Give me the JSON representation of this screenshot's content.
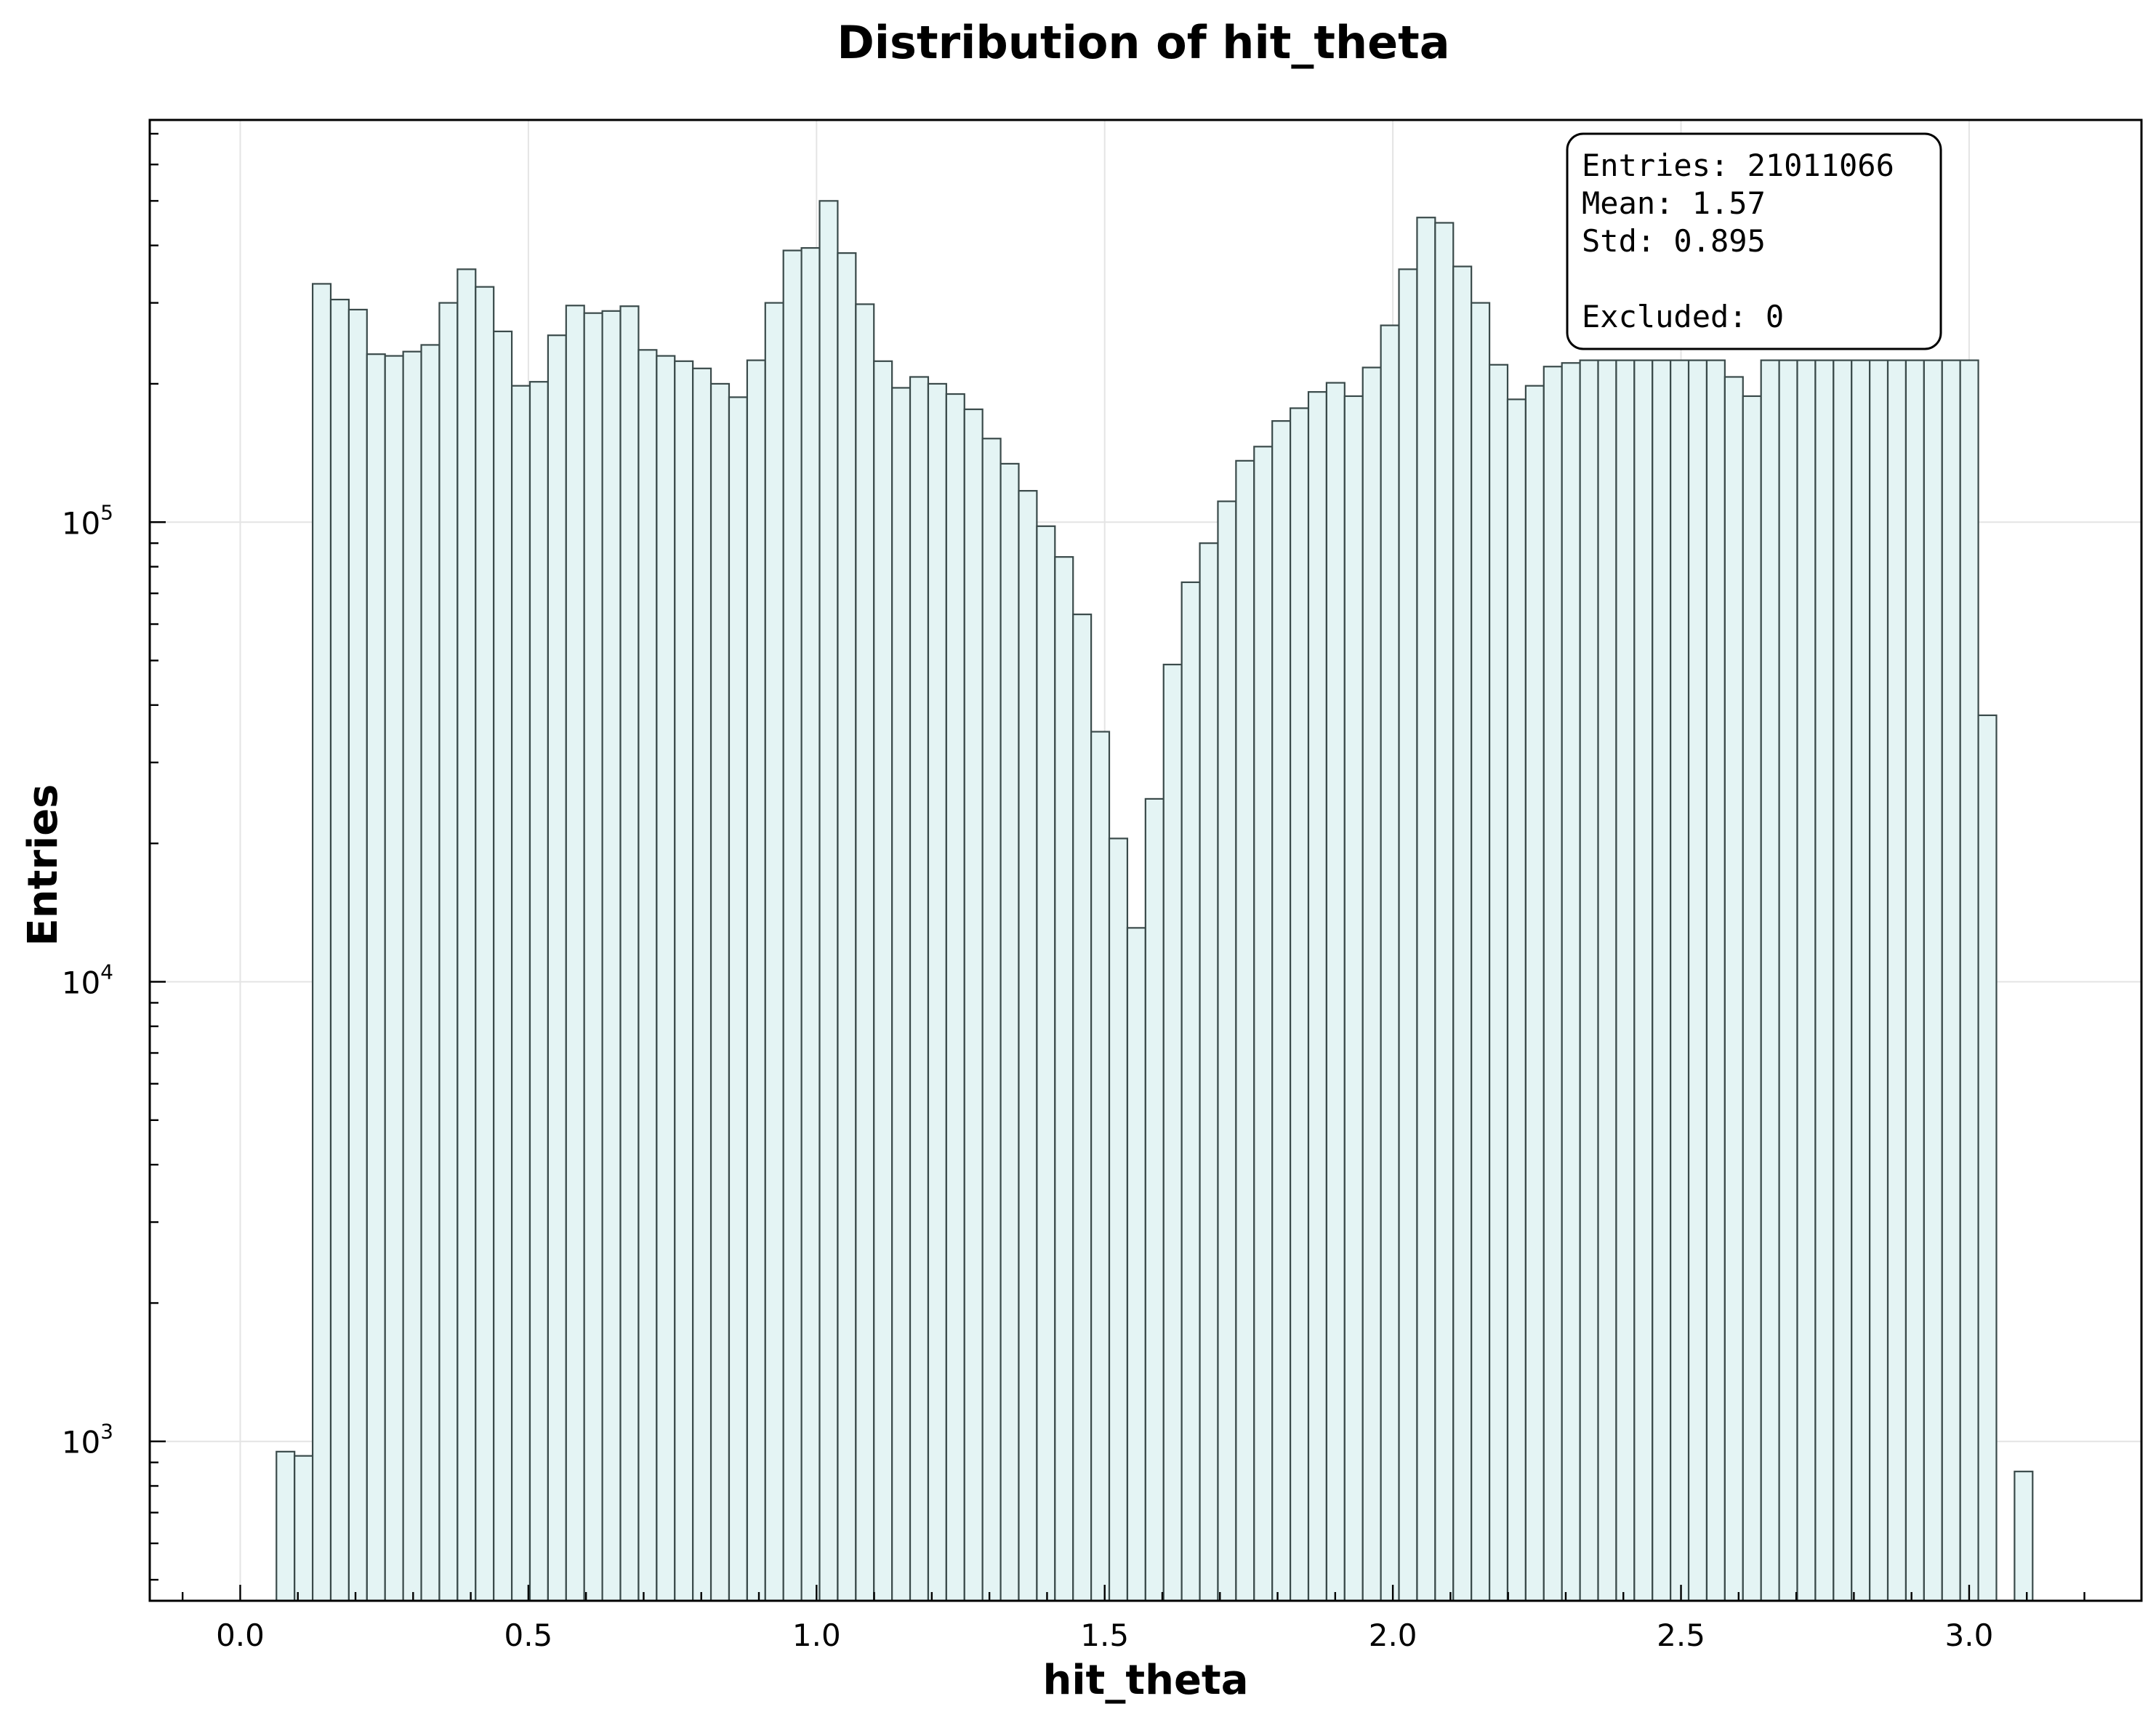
{
  "chart_data": {
    "type": "bar",
    "title": "Distribution of hit_theta",
    "xlabel": "hit_theta",
    "ylabel": "Entries",
    "yscale": "log",
    "xlim": [
      -0.157,
      3.299
    ],
    "ylim": [
      450,
      750000
    ],
    "grid": true,
    "bar_color": "#e4f4f4",
    "bar_edge_color": "#3a4a4a",
    "x_ticks": [
      {
        "value": 0.0,
        "label": "0.0"
      },
      {
        "value": 0.5,
        "label": "0.5"
      },
      {
        "value": 1.0,
        "label": "1.0"
      },
      {
        "value": 1.5,
        "label": "1.5"
      },
      {
        "value": 2.0,
        "label": "2.0"
      },
      {
        "value": 2.5,
        "label": "2.5"
      },
      {
        "value": 3.0,
        "label": "3.0"
      }
    ],
    "y_ticks": [
      {
        "value": 1000,
        "base": "10",
        "exp": "3"
      },
      {
        "value": 10000,
        "base": "10",
        "exp": "4"
      },
      {
        "value": 100000,
        "base": "10",
        "exp": "5"
      }
    ],
    "bin_start": 0.0,
    "bin_width": 0.0314159,
    "values": [
      0,
      0,
      950,
      930,
      330000,
      305000,
      290000,
      232000,
      230000,
      235000,
      243000,
      300000,
      355000,
      325000,
      260000,
      198000,
      202000,
      255000,
      296000,
      285000,
      288000,
      295000,
      237000,
      230000,
      224000,
      216000,
      200000,
      187000,
      225000,
      300000,
      390000,
      395000,
      500000,
      385000,
      298000,
      224000,
      196000,
      207000,
      200000,
      190000,
      176000,
      152000,
      134000,
      117000,
      98000,
      84000,
      63000,
      35000,
      20500,
      13100,
      25000,
      49000,
      74000,
      90000,
      111000,
      136000,
      146000,
      166000,
      177000,
      192000,
      201000,
      188000,
      217000,
      268000,
      355000,
      460000,
      448000,
      360000,
      300000,
      220000,
      185000,
      198000,
      218000,
      222000,
      225000,
      225000,
      225000,
      225000,
      225000,
      225000,
      225000,
      225000,
      207000,
      188000,
      225000,
      225000,
      225000,
      225000,
      225000,
      225000,
      225000,
      225000,
      225000,
      225000,
      225000,
      225000,
      38000,
      0,
      860
    ]
  },
  "stats_box": {
    "entries": "Entries: 21011066",
    "mean": "Mean: 1.57",
    "std": "Std: 0.895",
    "excluded": "Excluded: 0"
  }
}
